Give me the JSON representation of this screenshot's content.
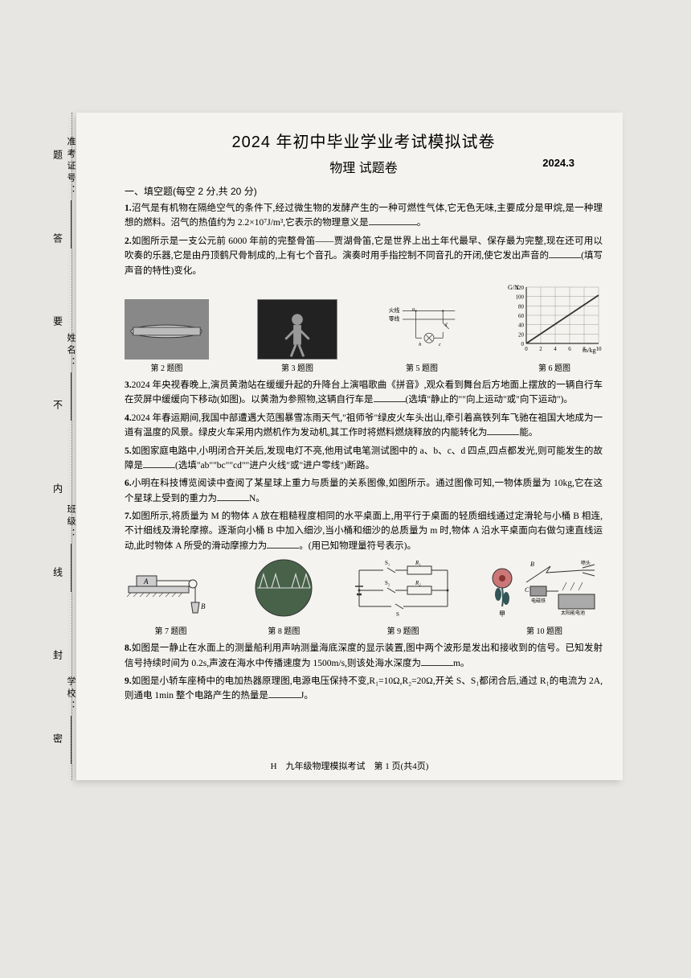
{
  "header": {
    "main_title": "2024 年初中毕业学业考试模拟试卷",
    "subtitle": "物理 试题卷",
    "date": "2024.3"
  },
  "section1": {
    "header": "一、填空题(每空 2 分,共 20 分)"
  },
  "questions": {
    "q1": {
      "num": "1.",
      "text_a": "沼气是有机物在隔绝空气的条件下,经过微生物的发酵产生的一种可燃性气体,它无色无味,主要成分是甲烷,是一种理想的燃料。沼气的热值约为 2.2×10⁷J/m³,它表示的物理意义是",
      "text_b": "。"
    },
    "q2": {
      "num": "2.",
      "text_a": "如图所示是一支公元前 6000 年前的完整骨笛——贾湖骨笛,它是世界上出土年代最早、保存最为完整,现在还可用以吹奏的乐器,它是由丹顶鹤尺骨制成的,上有七个音孔。演奏时用手指控制不同音孔的开闭,使它发出声音的",
      "text_b": "(填写声音的特性)变化。"
    },
    "q3": {
      "num": "3.",
      "text_a": "2024 年央视春晚上,演员黄渤站在缓缓升起的升降台上演唱歌曲《拼音》,观众看到舞台后方地面上摆放的一辆自行车在荧屏中缓缓向下移动(如图)。以黄渤为参照物,这辆自行车是",
      "text_b": "(选填\"静止的\"\"向上运动\"或\"向下运动\")。"
    },
    "q4": {
      "num": "4.",
      "text_a": "2024 年春运期间,我国中部遭遇大范围暴雪冻雨天气,\"祖师爷\"绿皮火车头出山,牵引着高铁列车飞驰在祖国大地成为一道有温度的风景。绿皮火车采用内燃机作为发动机,其工作时将燃料燃烧释放的内能转化为",
      "text_b": "能。"
    },
    "q5": {
      "num": "5.",
      "text_a": "如图家庭电路中,小明闭合开关后,发现电灯不亮,他用试电笔测试图中的 a、b、c、d 四点,四点都发光,则可能发生的故障是",
      "text_b": "(选填\"ab\"\"bc\"\"cd\"\"进户火线\"或\"进户零线\")断路。"
    },
    "q6": {
      "num": "6.",
      "text_a": "小明在科技博览阅读中查阅了某星球上重力与质量的关系图像,如图所示。通过图像可知,一物体质量为 10kg,它在这个星球上受到的重力为",
      "text_b": "N。"
    },
    "q7": {
      "num": "7.",
      "text_a": "如图所示,将质量为 M 的物体 A 放在粗糙程度相同的水平桌面上,用平行于桌面的轻质细线通过定滑轮与小桶 B 相连,不计细线及滑轮摩擦。逐渐向小桶 B 中加入细沙,当小桶和细沙的总质量为 m 时,物体 A 沿水平桌面向右做匀速直线运动,此时物体 A 所受的滑动摩擦力为",
      "text_b": "。(用已知物理量符号表示)。"
    },
    "q8": {
      "num": "8.",
      "text_a": "如图是一静止在水面上的测量船利用声呐测量海底深度的显示装置,图中两个波形是发出和接收到的信号。已知发射信号持续时间为 0.2s,声波在海水中传播速度为 1500m/s,则该处海水深度为",
      "text_b": "m。"
    },
    "q9": {
      "num": "9.",
      "text_a": "如图是小轿车座椅中的电加热器原理图,电源电压保持不变,R₁=10Ω,R₂=20Ω,开关 S、S₁都闭合后,通过 R₁的电流为 2A,则通电 1min 整个电路产生的热量是",
      "text_b": "J。"
    }
  },
  "figures": {
    "row1": {
      "f2": "第 2 题图",
      "f3": "第 3 题图",
      "f5": "第 5 题图",
      "f6": "第 6 题图"
    },
    "row2": {
      "f7": "第 7 题图",
      "f8": "第 8 题图",
      "f9": "第 9 题图",
      "f10": "第 10 题图"
    },
    "circuit_labels": {
      "fire": "火线",
      "zero": "零线"
    },
    "graph6": {
      "ylabel": "G/N",
      "xlabel": "m/kg",
      "ymax": 120,
      "yticks": [
        0,
        20,
        40,
        60,
        80,
        100,
        120
      ],
      "xmax": 10,
      "xticks": [
        0,
        2,
        4,
        6,
        8,
        10
      ],
      "line_color": "#333",
      "grid_color": "#888",
      "bg_color": "#f5f3ef"
    }
  },
  "left_margin": {
    "items": [
      "准考证号：",
      "姓名：",
      "班级：",
      "学校："
    ]
  },
  "binding": {
    "chars": [
      "题",
      "答",
      "要",
      "不",
      "内",
      "线",
      "封",
      "密"
    ]
  },
  "footer": {
    "letter": "H",
    "text": "九年级物理模拟考试　第 1 页(共4页)"
  },
  "colors": {
    "page_bg": "#f5f3ef",
    "outer_bg": "#e8e6e2",
    "text": "#1a1a1a"
  }
}
